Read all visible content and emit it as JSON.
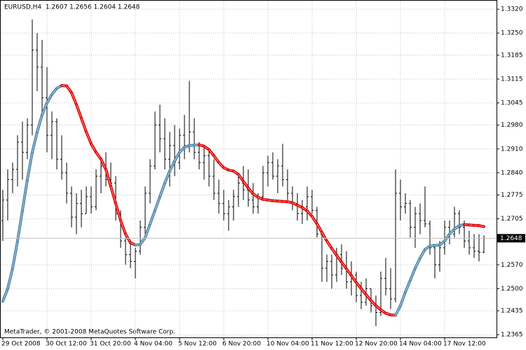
{
  "chart_data": {
    "type": "ohlc",
    "title": "EURUSD,H4  1.2607 1.2656 1.2604 1.2648",
    "footer": "MetaTrader, © 2001-2008 MetaQuotes Software Corp.",
    "categories": [
      "29 Oct 2008",
      null,
      null,
      null,
      null,
      null,
      null,
      null,
      null,
      "30 Oct 12:00",
      null,
      null,
      null,
      null,
      null,
      null,
      null,
      null,
      "31 Oct 20:00",
      null,
      null,
      null,
      null,
      null,
      null,
      null,
      null,
      "4 Nov 04:00",
      null,
      null,
      null,
      null,
      null,
      null,
      null,
      null,
      "5 Nov 12:00",
      null,
      null,
      null,
      null,
      null,
      null,
      null,
      null,
      "6 Nov 20:00",
      null,
      null,
      null,
      null,
      null,
      null,
      null,
      null,
      "10 Nov 04:00",
      null,
      null,
      null,
      null,
      null,
      null,
      null,
      null,
      "11 Nov 12:00",
      null,
      null,
      null,
      null,
      null,
      null,
      null,
      null,
      "12 Nov 20:00",
      null,
      null,
      null,
      null,
      null,
      null,
      null,
      null,
      "14 Nov 04:00",
      null,
      null,
      null,
      null,
      null,
      null,
      null,
      null,
      "17 Nov 12:00",
      null,
      null,
      null,
      null,
      null,
      null,
      null,
      null
    ],
    "open": [
      1.27,
      1.276,
      1.282,
      1.285,
      1.293,
      1.29,
      1.298,
      1.32,
      1.315,
      1.306,
      1.295,
      1.299,
      1.288,
      1.284,
      1.278,
      1.271,
      1.275,
      1.272,
      1.277,
      1.274,
      1.283,
      1.286,
      1.282,
      1.281,
      1.272,
      1.264,
      1.26,
      1.258,
      1.261,
      1.268,
      1.278,
      1.286,
      1.298,
      1.294,
      1.288,
      1.292,
      1.287,
      1.295,
      1.292,
      1.296,
      1.29,
      1.287,
      1.289,
      1.283,
      1.278,
      1.275,
      1.272,
      1.274,
      1.277,
      1.281,
      1.279,
      1.276,
      1.274,
      1.277,
      1.284,
      1.287,
      1.283,
      1.286,
      1.282,
      1.278,
      1.275,
      1.272,
      1.274,
      1.277,
      1.273,
      1.266,
      1.256,
      1.258,
      1.254,
      1.26,
      1.256,
      1.252,
      1.254,
      1.248,
      1.246,
      1.25,
      1.245,
      1.243,
      1.253,
      1.25,
      1.247,
      1.278,
      1.274,
      1.275,
      1.268,
      1.272,
      1.27,
      1.269,
      1.262,
      1.257,
      1.262,
      1.268,
      1.266,
      1.272,
      1.268,
      1.264,
      1.262,
      1.261,
      1.2607
    ],
    "high": [
      1.279,
      1.285,
      1.287,
      1.295,
      1.299,
      1.3,
      1.329,
      1.325,
      1.323,
      1.315,
      1.302,
      1.3,
      1.295,
      1.287,
      1.28,
      1.278,
      1.279,
      1.28,
      1.28,
      1.285,
      1.288,
      1.29,
      1.287,
      1.283,
      1.273,
      1.265,
      1.264,
      1.262,
      1.27,
      1.28,
      1.288,
      1.302,
      1.304,
      1.3,
      1.296,
      1.298,
      1.297,
      1.301,
      1.311,
      1.3,
      1.293,
      1.292,
      1.291,
      1.288,
      1.282,
      1.279,
      1.276,
      1.279,
      1.283,
      1.286,
      1.285,
      1.281,
      1.278,
      1.286,
      1.289,
      1.29,
      1.288,
      1.2925,
      1.285,
      1.28,
      1.278,
      1.276,
      1.28,
      1.279,
      1.274,
      1.2665,
      1.26,
      1.26,
      1.262,
      1.263,
      1.261,
      1.258,
      1.255,
      1.252,
      1.253,
      1.25,
      1.248,
      1.255,
      1.259,
      1.256,
      1.285,
      1.282,
      1.278,
      1.276,
      1.274,
      1.275,
      1.28,
      1.27,
      1.263,
      1.264,
      1.27,
      1.27,
      1.274,
      1.273,
      1.27,
      1.267,
      1.266,
      1.266,
      1.2656
    ],
    "low": [
      1.264,
      1.27,
      1.278,
      1.28,
      1.282,
      1.288,
      1.295,
      1.308,
      1.3,
      1.29,
      1.288,
      1.285,
      1.282,
      1.275,
      1.268,
      1.266,
      1.268,
      1.272,
      1.272,
      1.273,
      1.278,
      1.28,
      1.28,
      1.27,
      1.262,
      1.257,
      1.256,
      1.253,
      1.26,
      1.265,
      1.275,
      1.285,
      1.29,
      1.285,
      1.28,
      1.283,
      1.285,
      1.288,
      1.29,
      1.288,
      1.285,
      1.282,
      1.28,
      1.276,
      1.272,
      1.27,
      1.267,
      1.27,
      1.274,
      1.276,
      1.274,
      1.272,
      1.272,
      1.276,
      1.28,
      1.282,
      1.278,
      1.28,
      1.276,
      1.273,
      1.27,
      1.269,
      1.27,
      1.272,
      1.265,
      1.252,
      1.252,
      1.25,
      1.252,
      1.254,
      1.25,
      1.248,
      1.246,
      1.244,
      1.245,
      1.243,
      1.239,
      1.242,
      1.248,
      1.244,
      1.246,
      1.27,
      1.272,
      1.265,
      1.262,
      1.266,
      1.268,
      1.26,
      1.253,
      1.255,
      1.26,
      1.263,
      1.265,
      1.266,
      1.262,
      1.26,
      1.259,
      1.258,
      1.2604
    ],
    "close": [
      1.276,
      1.282,
      1.285,
      1.293,
      1.29,
      1.298,
      1.32,
      1.315,
      1.306,
      1.295,
      1.299,
      1.288,
      1.284,
      1.278,
      1.271,
      1.275,
      1.272,
      1.277,
      1.274,
      1.283,
      1.286,
      1.282,
      1.281,
      1.272,
      1.264,
      1.26,
      1.258,
      1.261,
      1.268,
      1.278,
      1.286,
      1.298,
      1.294,
      1.288,
      1.292,
      1.287,
      1.295,
      1.292,
      1.296,
      1.29,
      1.287,
      1.289,
      1.283,
      1.278,
      1.275,
      1.272,
      1.274,
      1.277,
      1.281,
      1.279,
      1.276,
      1.274,
      1.277,
      1.284,
      1.287,
      1.283,
      1.286,
      1.282,
      1.278,
      1.275,
      1.272,
      1.274,
      1.277,
      1.273,
      1.266,
      1.256,
      1.258,
      1.254,
      1.26,
      1.256,
      1.252,
      1.254,
      1.248,
      1.246,
      1.25,
      1.245,
      1.243,
      1.253,
      1.25,
      1.247,
      1.278,
      1.274,
      1.275,
      1.268,
      1.272,
      1.27,
      1.269,
      1.262,
      1.257,
      1.262,
      1.268,
      1.266,
      1.272,
      1.268,
      1.264,
      1.262,
      1.261,
      1.2607,
      1.2648
    ],
    "bar_color": "#000000",
    "indicator": {
      "up_color": "#4f86a8",
      "down_color": "#e00000",
      "values": [
        1.2463,
        1.25,
        1.256,
        1.264,
        1.273,
        1.282,
        1.29,
        1.296,
        1.301,
        1.3045,
        1.307,
        1.3088,
        1.3096,
        1.3095,
        1.3075,
        1.304,
        1.3,
        1.296,
        1.2925,
        1.29,
        1.288,
        1.285,
        1.28,
        1.275,
        1.27,
        1.266,
        1.2635,
        1.2628,
        1.263,
        1.265,
        1.269,
        1.273,
        1.277,
        1.281,
        1.2845,
        1.2875,
        1.29,
        1.2915,
        1.292,
        1.2921,
        1.2922,
        1.2918,
        1.2908,
        1.289,
        1.287,
        1.2855,
        1.2848,
        1.2845,
        1.2835,
        1.2815,
        1.2795,
        1.2778,
        1.2768,
        1.2762,
        1.276,
        1.2758,
        1.2757,
        1.2756,
        1.2755,
        1.2752,
        1.2745,
        1.2738,
        1.2728,
        1.2712,
        1.269,
        1.2665,
        1.264,
        1.2618,
        1.2598,
        1.2578,
        1.2558,
        1.2538,
        1.2518,
        1.25,
        1.2482,
        1.2465,
        1.245,
        1.2438,
        1.2428,
        1.2423,
        1.2422,
        1.245,
        1.249,
        1.2525,
        1.256,
        1.259,
        1.2615,
        1.2625,
        1.2627,
        1.2628,
        1.264,
        1.266,
        1.2675,
        1.2685,
        1.2688,
        1.2687,
        1.2686,
        1.2685,
        1.2682
      ]
    },
    "ylim": [
      1.2357,
      1.3347
    ],
    "yticks": [
      {
        "value": 1.332,
        "label": "1.3320"
      },
      {
        "value": 1.325,
        "label": "1.3250"
      },
      {
        "value": 1.3185,
        "label": "1.3185"
      },
      {
        "value": 1.3115,
        "label": "1.3115"
      },
      {
        "value": 1.3045,
        "label": "1.3045"
      },
      {
        "value": 1.298,
        "label": "1.2980"
      },
      {
        "value": 1.291,
        "label": "1.2910"
      },
      {
        "value": 1.284,
        "label": "1.2840"
      },
      {
        "value": 1.2775,
        "label": "1.2775"
      },
      {
        "value": 1.2705,
        "label": "1.2705"
      },
      {
        "value": 1.257,
        "label": "1.2570"
      },
      {
        "value": 1.25,
        "label": "1.2500"
      },
      {
        "value": 1.2435,
        "label": "1.2435"
      },
      {
        "value": 1.2365,
        "label": "1.2365"
      }
    ],
    "grid": true
  }
}
